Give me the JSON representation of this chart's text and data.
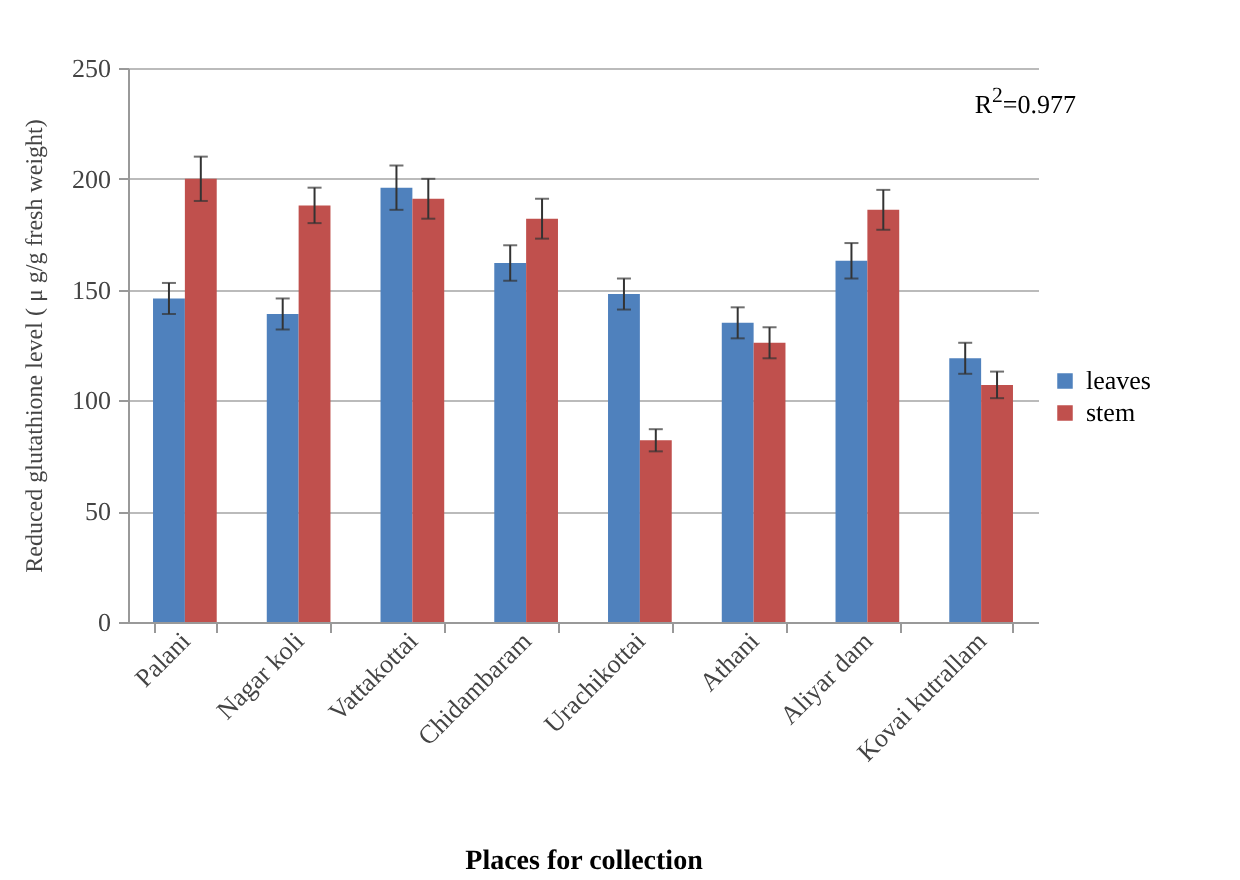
{
  "chart_data": {
    "type": "bar",
    "xlabel": "Places for collection",
    "ylabel": "Reduced glutathione level ( μ g/g fresh weight)",
    "categories": [
      "Palani",
      "Nagar koli",
      "Vattakottai",
      "Chidambaram",
      "Urachikottai",
      "Athani",
      "Aliyar dam",
      "Kovai kutrallam"
    ],
    "series": [
      {
        "name": "leaves",
        "color": "#4f81bd",
        "values": [
          146,
          139,
          196,
          162,
          148,
          135,
          163,
          119
        ],
        "errors": [
          7,
          7,
          10,
          8,
          7,
          7,
          8,
          7
        ]
      },
      {
        "name": "stem",
        "color": "#c0504d",
        "values": [
          200,
          188,
          191,
          182,
          82,
          126,
          186,
          107
        ],
        "errors": [
          10,
          8,
          9,
          9,
          5,
          7,
          9,
          6
        ]
      }
    ],
    "ylim": [
      0,
      250
    ],
    "yticks": [
      0,
      50,
      100,
      150,
      200,
      250
    ],
    "grid": "y",
    "legend": "right",
    "annotations": [
      "R$^{2}$=0.977"
    ]
  }
}
